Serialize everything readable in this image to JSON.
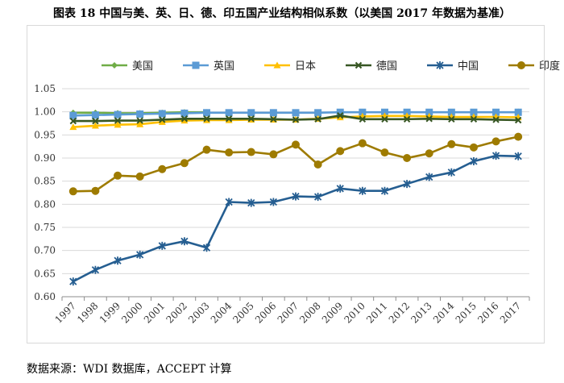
{
  "figure": {
    "title": "图表 18  中国与美、英、日、德、印五国产业结构相似系数（以美国 2017 年数据为基准）",
    "source": "数据来源：WDI 数据库，ACCEPT 计算"
  },
  "chart_data": {
    "type": "line",
    "title": "图表 18  中国与美、英、日、德、印五国产业结构相似系数（以美国 2017 年数据为基准）",
    "xlabel": "",
    "ylabel": "",
    "ylim": [
      0.6,
      1.05
    ],
    "yticks": [
      0.6,
      0.65,
      0.7,
      0.75,
      0.8,
      0.85,
      0.9,
      0.95,
      1.0,
      1.05
    ],
    "ytick_labels": [
      "0.60",
      "0.65",
      "0.70",
      "0.75",
      "0.80",
      "0.85",
      "0.90",
      "0.95",
      "1.00",
      "1.05"
    ],
    "grid": "horizontal",
    "legend_position": "top",
    "categories": [
      "1997",
      "1998",
      "1999",
      "2000",
      "2001",
      "2002",
      "2003",
      "2004",
      "2005",
      "2006",
      "2007",
      "2008",
      "2009",
      "2010",
      "2011",
      "2012",
      "2013",
      "2014",
      "2015",
      "2016",
      "2017"
    ],
    "series": [
      {
        "name": "美国",
        "color": "#70ad47",
        "marker": "diamond",
        "values": [
          0.998,
          0.998,
          0.997,
          0.997,
          0.998,
          0.999,
          0.999,
          null,
          null,
          null,
          null,
          null,
          null,
          null,
          null,
          null,
          null,
          null,
          null,
          null,
          1.0
        ]
      },
      {
        "name": "英国",
        "color": "#5b9bd5",
        "marker": "square",
        "values": [
          0.992,
          0.993,
          0.994,
          0.995,
          0.996,
          0.997,
          0.998,
          0.998,
          0.998,
          0.998,
          0.998,
          0.998,
          0.999,
          0.999,
          0.999,
          0.999,
          0.999,
          0.999,
          0.999,
          0.999,
          0.999
        ]
      },
      {
        "name": "日本",
        "color": "#ffc000",
        "marker": "triangle",
        "values": [
          0.967,
          0.97,
          0.972,
          0.973,
          0.978,
          0.981,
          0.982,
          0.982,
          0.983,
          0.983,
          0.983,
          0.985,
          0.988,
          0.99,
          0.991,
          0.991,
          0.99,
          0.989,
          0.989,
          0.989,
          0.988
        ]
      },
      {
        "name": "德国",
        "color": "#375623",
        "marker": "x",
        "values": [
          0.98,
          0.98,
          0.981,
          0.981,
          0.983,
          0.985,
          0.985,
          0.985,
          0.985,
          0.984,
          0.983,
          0.984,
          0.992,
          0.984,
          0.984,
          0.984,
          0.985,
          0.984,
          0.984,
          0.983,
          0.982
        ]
      },
      {
        "name": "中国",
        "color": "#255e91",
        "marker": "star",
        "values": [
          0.633,
          0.658,
          0.678,
          0.691,
          0.71,
          0.72,
          0.706,
          0.805,
          0.803,
          0.805,
          0.817,
          0.816,
          0.834,
          0.829,
          0.829,
          0.844,
          0.859,
          0.869,
          0.893,
          0.905,
          0.904
        ]
      },
      {
        "name": "印度",
        "color": "#9e7b00",
        "marker": "circle",
        "values": [
          0.828,
          0.829,
          0.862,
          0.86,
          0.876,
          0.889,
          0.918,
          0.912,
          0.913,
          0.908,
          0.929,
          0.886,
          0.915,
          0.932,
          0.912,
          0.9,
          0.91,
          0.93,
          0.923,
          0.936,
          0.946
        ]
      }
    ]
  }
}
